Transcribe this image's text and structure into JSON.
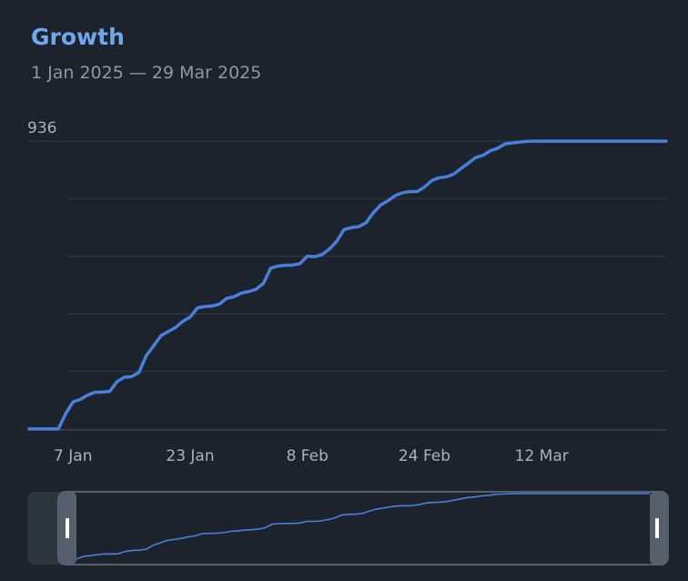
{
  "header": {
    "title": "Growth",
    "subtitle": "1 Jan 2025 — 29 Mar 2025"
  },
  "chart_data": {
    "type": "line",
    "title": "Growth",
    "subtitle": "1 Jan 2025 — 29 Mar 2025",
    "xlabel": "",
    "ylabel": "",
    "xlim": [
      "2025-01-01",
      "2025-03-29"
    ],
    "ylim": [
      0,
      936
    ],
    "y_tick_labels": [
      "936"
    ],
    "x_tick_labels": [
      "7 Jan",
      "23 Jan",
      "8 Feb",
      "24 Feb",
      "12 Mar"
    ],
    "x_tick_dates": [
      "2025-01-07",
      "2025-01-23",
      "2025-02-08",
      "2025-02-24",
      "2025-03-12"
    ],
    "grid": true,
    "line_color": "#4a7fdc",
    "navigator": true,
    "series": [
      {
        "x": [
          "2025-01-01",
          "2025-01-02",
          "2025-01-03",
          "2025-01-04",
          "2025-01-05",
          "2025-01-06",
          "2025-01-07",
          "2025-01-08",
          "2025-01-09",
          "2025-01-10",
          "2025-01-11",
          "2025-01-12",
          "2025-01-13",
          "2025-01-14",
          "2025-01-15",
          "2025-01-16",
          "2025-01-17",
          "2025-01-18",
          "2025-01-19",
          "2025-01-20",
          "2025-01-21",
          "2025-01-22",
          "2025-01-23",
          "2025-01-24",
          "2025-01-25",
          "2025-01-26",
          "2025-01-27",
          "2025-01-28",
          "2025-01-29",
          "2025-01-30",
          "2025-01-31",
          "2025-02-01",
          "2025-02-02",
          "2025-02-03",
          "2025-02-04",
          "2025-02-05",
          "2025-02-06",
          "2025-02-07",
          "2025-02-08",
          "2025-02-09",
          "2025-02-10",
          "2025-02-11",
          "2025-02-12",
          "2025-02-13",
          "2025-02-14",
          "2025-02-15",
          "2025-02-16",
          "2025-02-17",
          "2025-02-18",
          "2025-02-19",
          "2025-02-20",
          "2025-02-21",
          "2025-02-22",
          "2025-02-23",
          "2025-02-24",
          "2025-02-25",
          "2025-02-26",
          "2025-02-27",
          "2025-02-28",
          "2025-03-01",
          "2025-03-02",
          "2025-03-03",
          "2025-03-04",
          "2025-03-05",
          "2025-03-06",
          "2025-03-07",
          "2025-03-08",
          "2025-03-09",
          "2025-03-10",
          "2025-03-11",
          "2025-03-12",
          "2025-03-13",
          "2025-03-14",
          "2025-03-15",
          "2025-03-16",
          "2025-03-17",
          "2025-03-18",
          "2025-03-19",
          "2025-03-20",
          "2025-03-21",
          "2025-03-22",
          "2025-03-23",
          "2025-03-24",
          "2025-03-25",
          "2025-03-26",
          "2025-03-27",
          "2025-03-28",
          "2025-03-29"
        ],
        "values": [
          0,
          0,
          0,
          0,
          0,
          50,
          88,
          96,
          110,
          119,
          120,
          122,
          154,
          168,
          170,
          184,
          238,
          270,
          303,
          317,
          330,
          350,
          364,
          394,
          398,
          400,
          406,
          425,
          430,
          442,
          447,
          454,
          474,
          523,
          530,
          532,
          533,
          538,
          562,
          560,
          567,
          585,
          610,
          648,
          655,
          658,
          670,
          703,
          728,
          742,
          759,
          768,
          772,
          772,
          787,
          808,
          817,
          820,
          829,
          847,
          865,
          883,
          890,
          905,
          913,
          927,
          930,
          933,
          935,
          936,
          936,
          936,
          936,
          936,
          936,
          936,
          936,
          936,
          936,
          936,
          936,
          936,
          936,
          936,
          936,
          936,
          936,
          936
        ]
      }
    ]
  }
}
